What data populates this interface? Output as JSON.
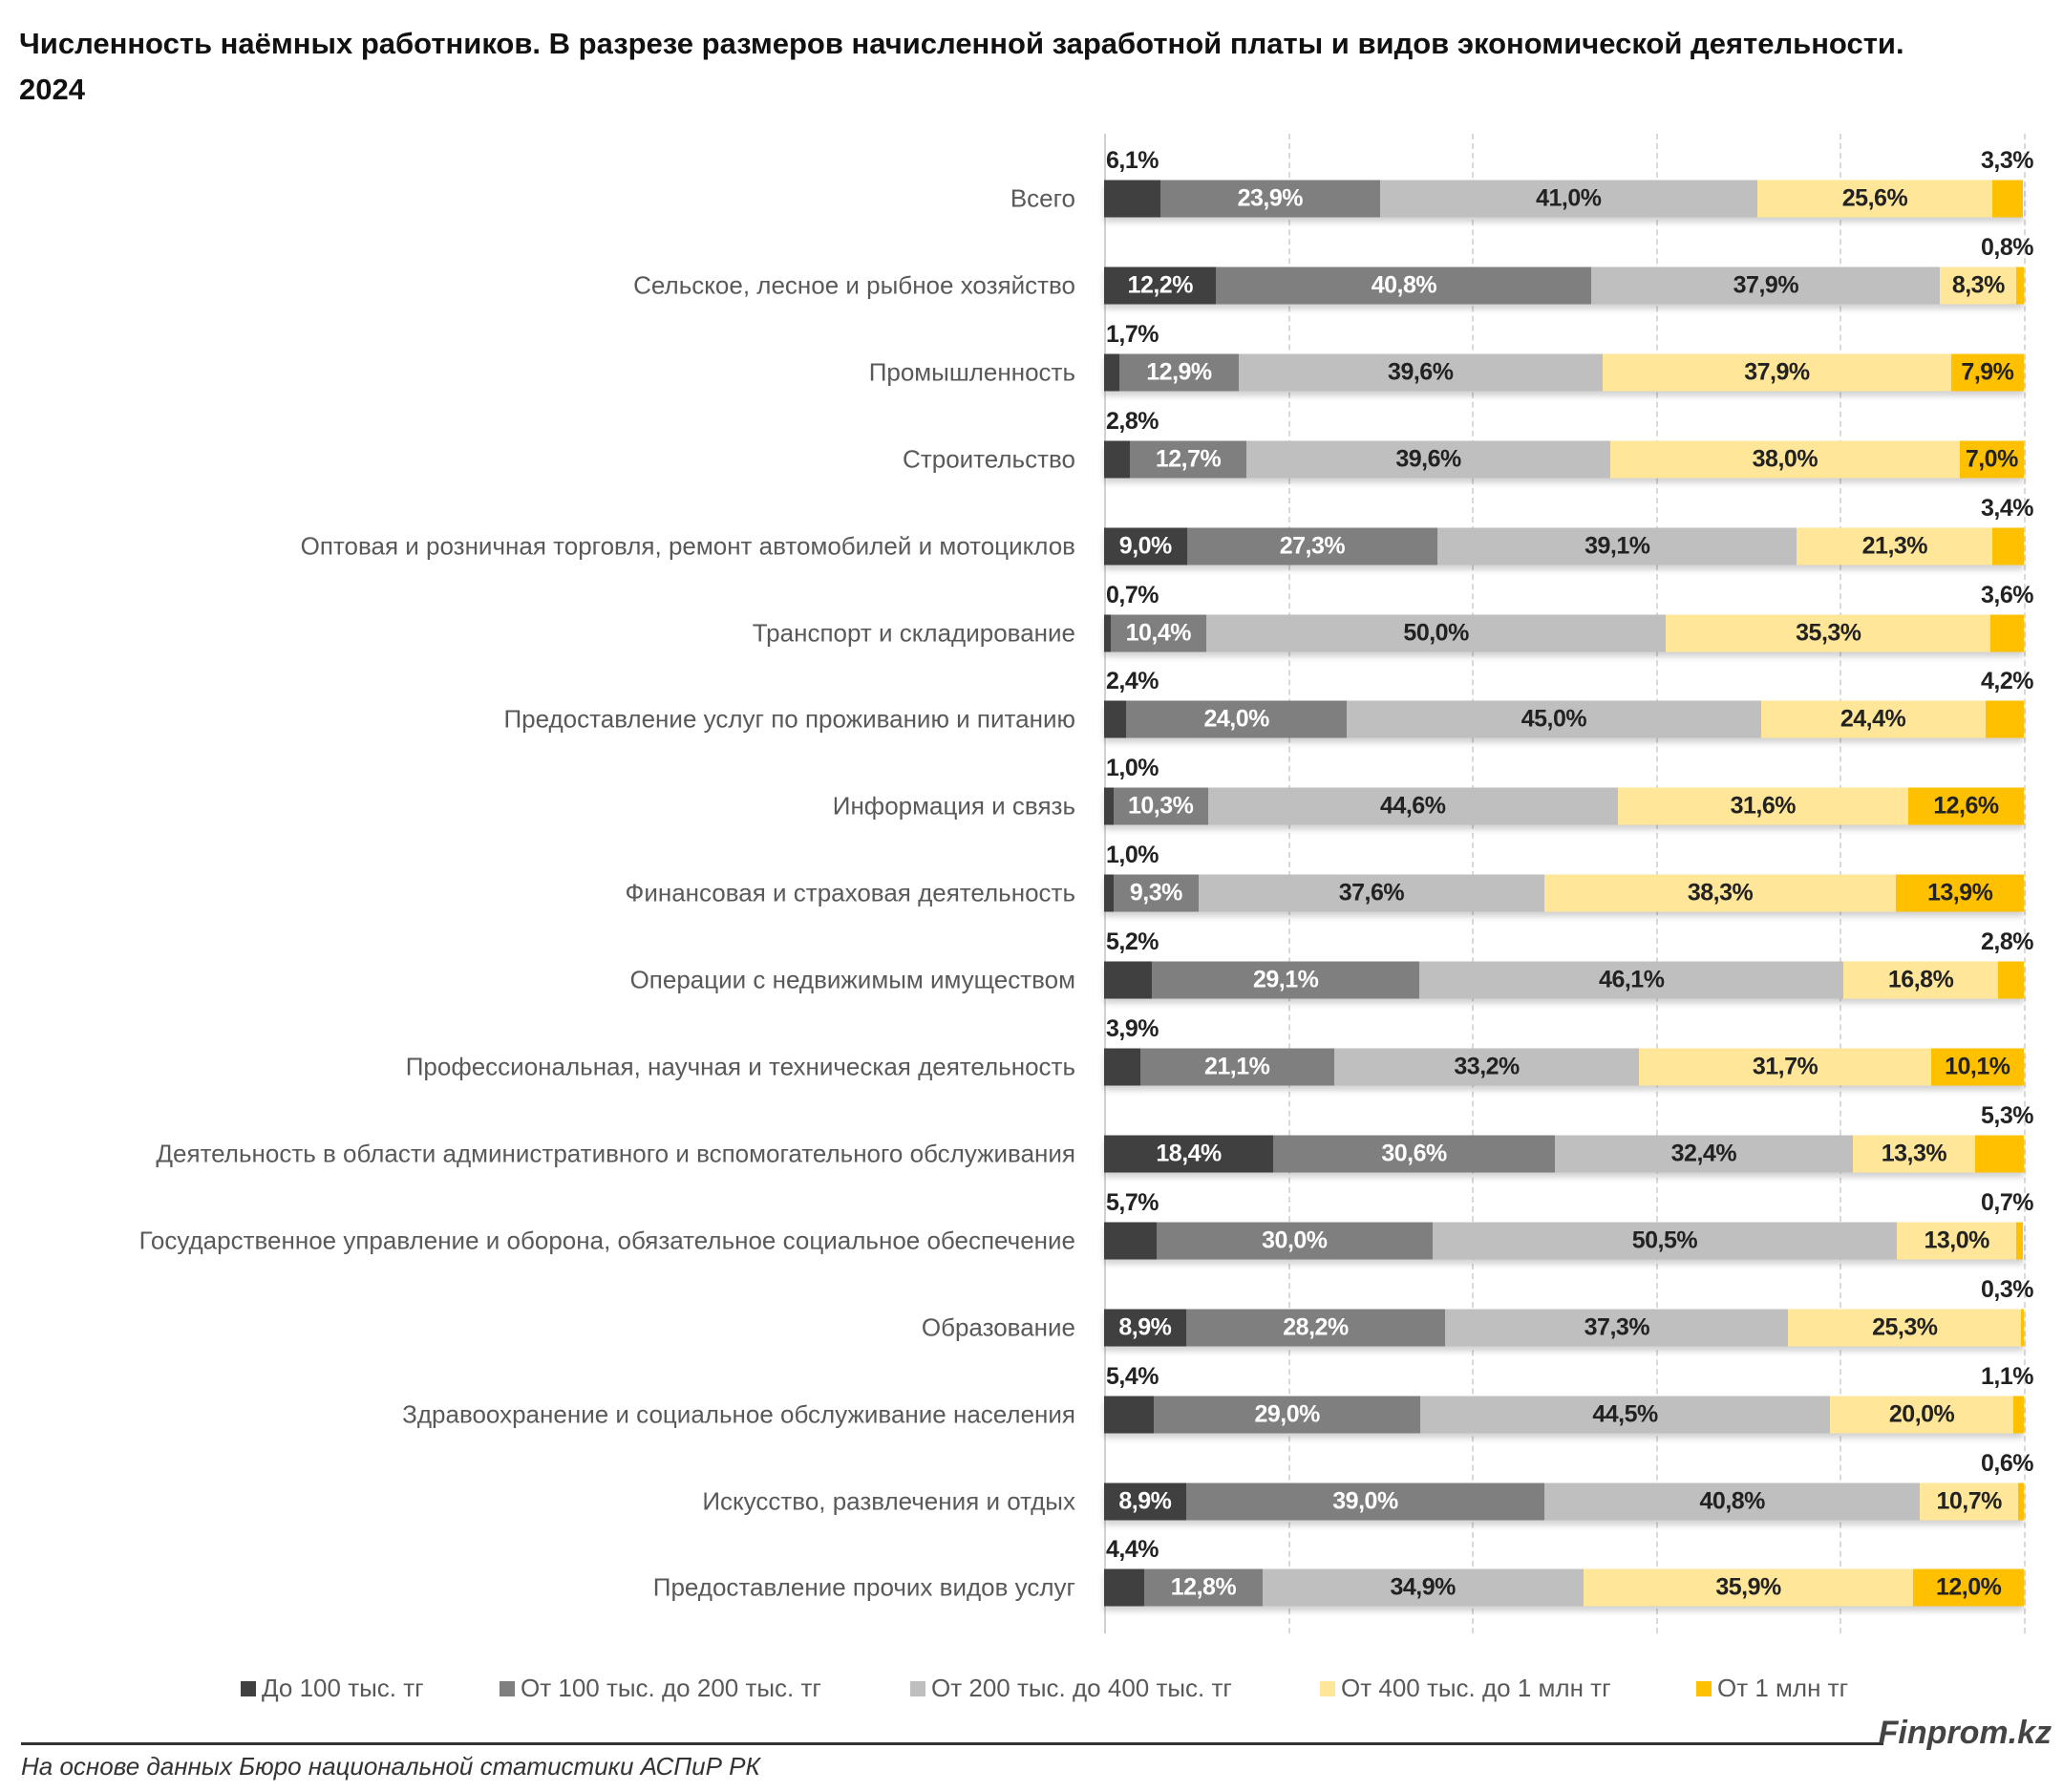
{
  "chart_data": {
    "type": "bar",
    "orientation": "horizontal",
    "stacked": "100%",
    "title": "Численность наёмных работников. В разрезе размеров начисленной заработной платы и видов экономической деятельности. 2024",
    "xlim": [
      0,
      100
    ],
    "grid": true,
    "legend_position": "bottom",
    "colors": [
      "#404040",
      "#7f7f7f",
      "#bfbfbf",
      "#ffe699",
      "#ffc000"
    ],
    "categories": [
      "Всего",
      "Сельское, лесное и рыбное хозяйство",
      "Промышленность",
      "Строительство",
      "Оптовая и розничная торговля, ремонт автомобилей и мотоциклов",
      "Транспорт и складирование",
      "Предоставление услуг по проживанию и питанию",
      "Информация и связь",
      "Финансовая и страховая деятельность",
      "Операции с недвижимым имуществом",
      "Профессиональная, научная и техническая деятельность",
      "Деятельность в области административного и вспомогательного обслуживания",
      "Государственное управление и оборона, обязательное социальное обеспечение",
      "Образование",
      "Здравоохранение и социальное обслуживание населения",
      "Искусство, развлечения и отдых",
      "Предоставление прочих видов услуг"
    ],
    "series": [
      {
        "name": "До 100 тыс. тг",
        "values": [
          6.1,
          12.2,
          1.7,
          2.8,
          9.0,
          0.7,
          2.4,
          1.0,
          1.0,
          5.2,
          3.9,
          18.4,
          5.7,
          8.9,
          5.4,
          8.9,
          4.4
        ]
      },
      {
        "name": "От 100 тыс. до 200 тыс. тг",
        "values": [
          23.9,
          40.8,
          12.9,
          12.7,
          27.3,
          10.4,
          24.0,
          10.3,
          9.3,
          29.1,
          21.1,
          30.6,
          30.0,
          28.2,
          29.0,
          39.0,
          12.8
        ]
      },
      {
        "name": "От 200 тыс. до 400 тыс. тг",
        "values": [
          41.0,
          37.9,
          39.6,
          39.6,
          39.1,
          50.0,
          45.0,
          44.6,
          37.6,
          46.1,
          33.2,
          32.4,
          50.5,
          37.3,
          44.5,
          40.8,
          34.9
        ]
      },
      {
        "name": "От 400 тыс. до 1 млн тг",
        "values": [
          25.6,
          8.3,
          37.9,
          38.0,
          21.3,
          35.3,
          24.4,
          31.6,
          38.3,
          16.8,
          31.7,
          13.3,
          13.0,
          25.3,
          20.0,
          10.7,
          35.9
        ]
      },
      {
        "name": "От 1 млн тг",
        "values": [
          3.3,
          0.8,
          7.9,
          7.0,
          3.4,
          3.6,
          4.2,
          12.6,
          13.9,
          2.8,
          10.1,
          5.3,
          0.7,
          0.3,
          1.1,
          0.6,
          12.0
        ]
      }
    ]
  },
  "footer": {
    "source": "На основе данных Бюро национальной статистики АСПиР РК",
    "brand": "Finprom.kz"
  }
}
